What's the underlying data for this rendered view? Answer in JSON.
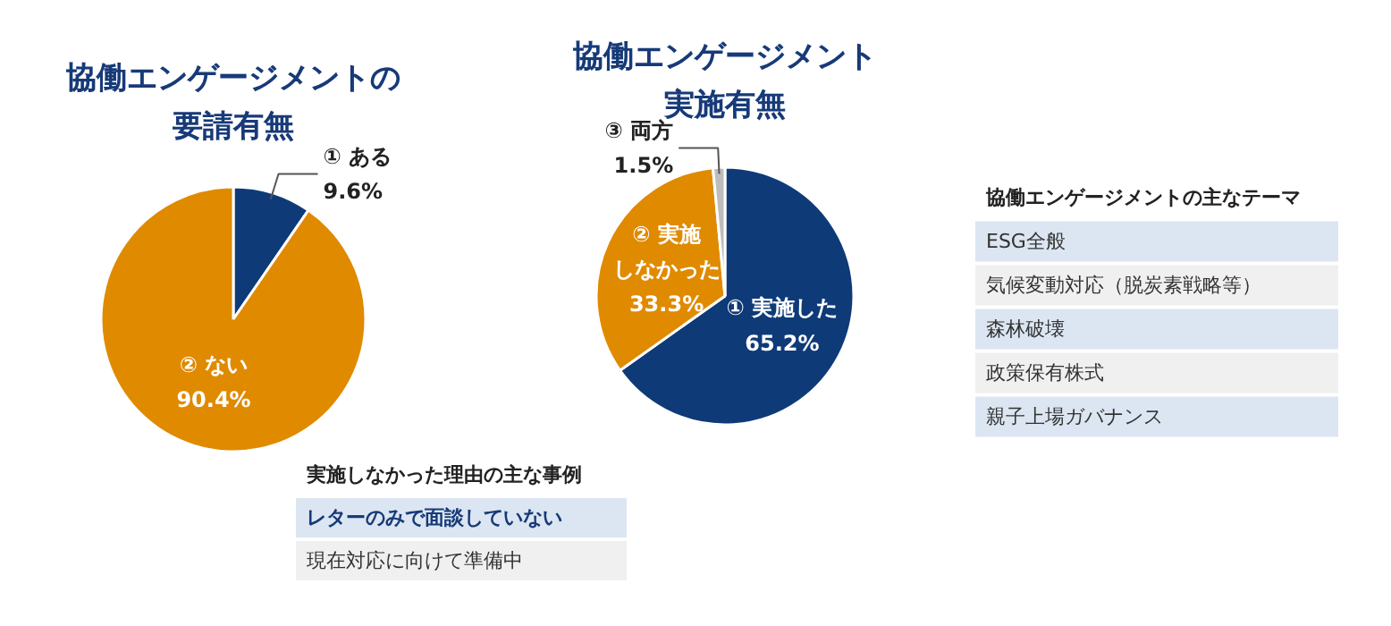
{
  "chart_data": [
    {
      "type": "pie",
      "title": "協働エンゲージメントの要請有無",
      "categories": [
        "① ある",
        "② ない"
      ],
      "values": [
        9.6,
        90.4
      ],
      "value_labels": [
        "9.6%",
        "90.4%"
      ],
      "colors": [
        "#0e3a78",
        "#e08a00"
      ]
    },
    {
      "type": "pie",
      "title": "協働エンゲージメント実施有無",
      "categories": [
        "① 実施した",
        "② 実施しなかった",
        "③ 両方"
      ],
      "values": [
        65.2,
        33.3,
        1.5
      ],
      "value_labels": [
        "65.2%",
        "33.3%",
        "1.5%"
      ],
      "colors": [
        "#0e3a78",
        "#e08a00",
        "#bdbdbd"
      ]
    },
    {
      "type": "other",
      "title": "実施しなかった理由の主な事例",
      "annotations": [
        "レターのみで面談していない",
        "現在対応に向けて準備中"
      ]
    },
    {
      "type": "other",
      "title": "協働エンゲージメントの主なテーマ",
      "annotations": [
        "ESG全般",
        "気候変動対応（脱炭素戦略等）",
        "森林破壊",
        "政策保有株式",
        "親子上場ガバナンス"
      ]
    }
  ]
}
